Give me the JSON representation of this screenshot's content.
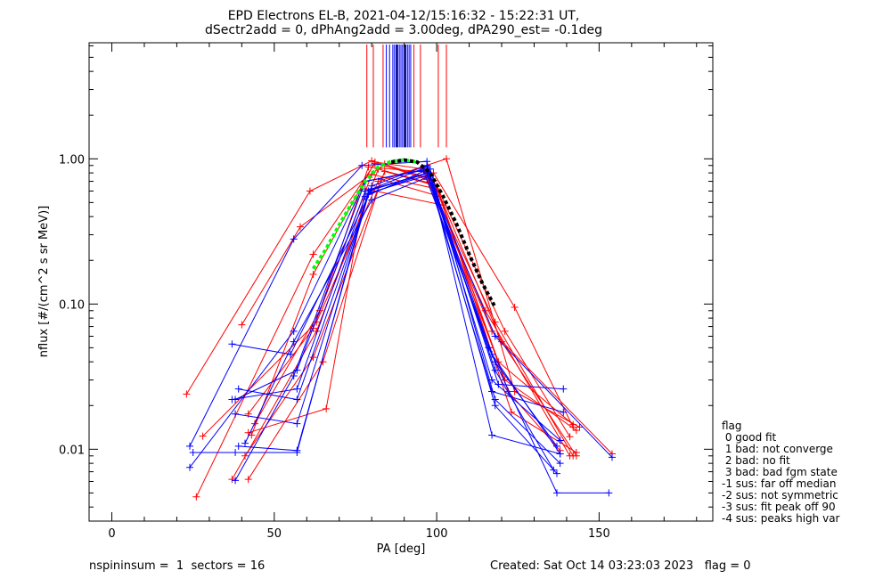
{
  "chart_data": {
    "type": "line",
    "title_lines": [
      "EPD Electrons EL-B, 2021-04-12/15:16:32 - 15:22:31 UT,",
      "dSectr2add = 0, dPhAng2add = 3.00deg, dPA290_est=  -0.1deg"
    ],
    "xlabel": "PA [deg]",
    "ylabel": "nflux [#/(cm^2 s sr MeV)]",
    "xlim": [
      -7,
      185
    ],
    "ylim": [
      0.0032,
      6.3
    ],
    "yscale": "log",
    "x_ticks": [
      0,
      50,
      100,
      150
    ],
    "x_tick_labels": [
      "0",
      "50",
      "100",
      "150"
    ],
    "y_ticks": [
      0.01,
      0.1,
      1.0
    ],
    "y_tick_labels": [
      "0.01",
      "0.10",
      "1.00"
    ],
    "colors": {
      "red": "#ff0000",
      "blue": "#0000ff",
      "green": "#00ff00",
      "black": "#000000"
    },
    "series": [
      {
        "color": "red",
        "x": [
          23,
          61,
          80,
          97,
          115,
          141
        ],
        "y": [
          0.024,
          0.6,
          0.97,
          0.72,
          0.09,
          0.009
        ]
      },
      {
        "color": "red",
        "x": [
          26,
          62,
          81,
          97,
          118,
          142
        ],
        "y": [
          0.0047,
          0.22,
          0.93,
          0.75,
          0.075,
          0.009
        ]
      },
      {
        "color": "red",
        "x": [
          37,
          63,
          82,
          98,
          119,
          142
        ],
        "y": [
          0.0062,
          0.065,
          0.85,
          0.68,
          0.04,
          0.0148
        ]
      },
      {
        "color": "red",
        "x": [
          40,
          58,
          84,
          99,
          120,
          143
        ],
        "y": [
          0.072,
          0.34,
          0.92,
          0.71,
          0.055,
          0.009
        ]
      },
      {
        "color": "red",
        "x": [
          42,
          62,
          80,
          100,
          121,
          143
        ],
        "y": [
          0.0175,
          0.068,
          0.78,
          0.62,
          0.03,
          0.0135
        ]
      },
      {
        "color": "red",
        "x": [
          42,
          65,
          83,
          101,
          122,
          138
        ],
        "y": [
          0.0062,
          0.04,
          0.72,
          0.55,
          0.025,
          0.0098
        ]
      },
      {
        "color": "red",
        "x": [
          42,
          66,
          78,
          102,
          123,
          143
        ],
        "y": [
          0.013,
          0.019,
          0.62,
          0.48,
          0.018,
          0.0095
        ]
      },
      {
        "color": "red",
        "x": [
          44,
          64,
          79,
          99,
          124,
          142
        ],
        "y": [
          0.015,
          0.09,
          0.88,
          0.8,
          0.095,
          0.0142
        ]
      },
      {
        "color": "red",
        "x": [
          43,
          62,
          81,
          96,
          117,
          154
        ],
        "y": [
          0.0125,
          0.16,
          0.95,
          0.85,
          0.065,
          0.0093
        ]
      },
      {
        "color": "red",
        "x": [
          28,
          63,
          82,
          103,
          124,
          144
        ],
        "y": [
          0.0123,
          0.075,
          0.7,
          1.0,
          0.025,
          0.0142
        ]
      },
      {
        "color": "red",
        "x": [
          41,
          62,
          84,
          100,
          121,
          141
        ],
        "y": [
          0.009,
          0.043,
          0.82,
          0.65,
          0.065,
          0.0122
        ]
      },
      {
        "color": "blue",
        "x": [
          24,
          56,
          77,
          97,
          117,
          138
        ],
        "y": [
          0.0105,
          0.28,
          0.9,
          0.96,
          0.0125,
          0.0093
        ]
      },
      {
        "color": "blue",
        "x": [
          24,
          56,
          78,
          98,
          118,
          138
        ],
        "y": [
          0.0075,
          0.065,
          0.7,
          0.85,
          0.022,
          0.008
        ]
      },
      {
        "color": "blue",
        "x": [
          25,
          38,
          57,
          79,
          97,
          116,
          137,
          153
        ],
        "y": [
          0.0095,
          0.0095,
          0.0095,
          0.6,
          0.8,
          0.05,
          0.005,
          0.005
        ]
      },
      {
        "color": "blue",
        "x": [
          37,
          55,
          80,
          97,
          118,
          136
        ],
        "y": [
          0.053,
          0.045,
          0.62,
          0.88,
          0.035,
          0.0072
        ]
      },
      {
        "color": "blue",
        "x": [
          37,
          57,
          78,
          96,
          118,
          137
        ],
        "y": [
          0.022,
          0.026,
          0.55,
          0.82,
          0.04,
          0.0105
        ]
      },
      {
        "color": "blue",
        "x": [
          38,
          57,
          79,
          98,
          119,
          139
        ],
        "y": [
          0.0175,
          0.015,
          0.58,
          0.78,
          0.028,
          0.026
        ]
      },
      {
        "color": "blue",
        "x": [
          39,
          57,
          80,
          97,
          117,
          138
        ],
        "y": [
          0.026,
          0.022,
          0.65,
          0.9,
          0.03,
          0.0115
        ]
      },
      {
        "color": "blue",
        "x": [
          38,
          56,
          78,
          97,
          118,
          137
        ],
        "y": [
          0.0061,
          0.032,
          0.7,
          0.85,
          0.02,
          0.0068
        ]
      },
      {
        "color": "blue",
        "x": [
          41,
          56,
          80,
          98,
          117,
          138
        ],
        "y": [
          0.011,
          0.055,
          0.52,
          0.76,
          0.045,
          0.0093
        ]
      },
      {
        "color": "blue",
        "x": [
          39,
          57,
          79,
          97,
          118,
          154
        ],
        "y": [
          0.0105,
          0.0098,
          0.57,
          0.8,
          0.06,
          0.0088
        ]
      },
      {
        "color": "blue",
        "x": [
          38,
          57,
          78,
          97,
          117,
          139
        ],
        "y": [
          0.022,
          0.035,
          0.6,
          0.8,
          0.025,
          0.018
        ]
      }
    ],
    "fit_curves": [
      {
        "color": "green",
        "x": [
          62,
          66,
          70,
          74,
          78,
          82,
          86,
          90,
          94
        ],
        "y": [
          0.175,
          0.24,
          0.35,
          0.5,
          0.7,
          0.88,
          0.96,
          0.98,
          0.95
        ]
      },
      {
        "color": "black",
        "x": [
          86,
          90,
          94,
          98,
          102,
          106,
          110,
          114,
          118
        ],
        "y": [
          0.95,
          0.98,
          0.95,
          0.8,
          0.55,
          0.36,
          0.22,
          0.14,
          0.095
        ]
      }
    ],
    "vertical_lines": [
      {
        "color": "red",
        "x": [
          78.5,
          80.5,
          83.5,
          93,
          95,
          100.5,
          103
        ]
      },
      {
        "color": "blue",
        "x": [
          84.5,
          85.5,
          86.5,
          87,
          87.5,
          88,
          88.5,
          89,
          89.5,
          90,
          90.5,
          91,
          91.5,
          92
        ]
      },
      {
        "color": "black",
        "x": [
          87.8,
          90.2
        ]
      }
    ],
    "legend": {
      "title": "flag",
      "position": "right",
      "entries": [
        " 0 good fit",
        " 1 bad: not converge",
        " 2 bad: no fit",
        " 3 bad: bad fgm state",
        "-1 sus: far off median",
        "-2 sus: not symmetric",
        "-3 sus: fit peak off 90",
        "-4 sus: peaks high var"
      ]
    },
    "footer": {
      "left": "nspininsum =  1  sectors = 16",
      "right": "Created: Sat Oct 14 03:23:03 2023   flag = 0"
    }
  }
}
